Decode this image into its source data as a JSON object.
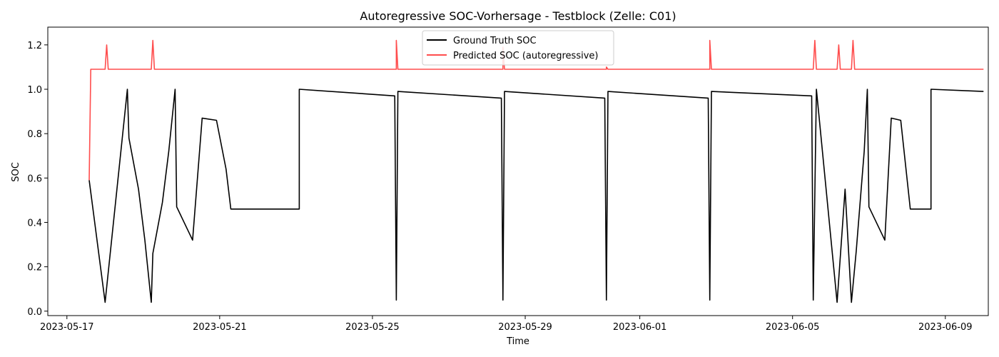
{
  "chart_data": {
    "type": "line",
    "title": "Autoregressive SOC-Vorhersage - Testblock (Zelle: C01)",
    "xlabel": "Time",
    "ylabel": "SOC",
    "x_unit": "date",
    "xlim": [
      "2023-05-16T12:00",
      "2023-06-10T03:00"
    ],
    "ylim": [
      -0.02,
      1.28
    ],
    "x_ticks": [
      "2023-05-17",
      "2023-05-21",
      "2023-05-25",
      "2023-05-29",
      "2023-06-01",
      "2023-06-05",
      "2023-06-09"
    ],
    "y_ticks": [
      0.0,
      0.2,
      0.4,
      0.6,
      0.8,
      1.0,
      1.2
    ],
    "y_tick_labels": [
      "0.0",
      "0.2",
      "0.4",
      "0.6",
      "0.8",
      "1.0",
      "1.2"
    ],
    "grid": false,
    "legend_position": "top-center",
    "series": [
      {
        "name": "Ground Truth SOC",
        "color": "#000000",
        "points": [
          [
            "2023-05-17T14:00",
            0.59
          ],
          [
            "2023-05-18T00:00",
            0.04
          ],
          [
            "2023-05-18T14:00",
            1.0
          ],
          [
            "2023-05-18T15:00",
            0.78
          ],
          [
            "2023-05-18T21:00",
            0.55
          ],
          [
            "2023-05-19T01:00",
            0.32
          ],
          [
            "2023-05-19T05:00",
            0.04
          ],
          [
            "2023-05-19T06:00",
            0.26
          ],
          [
            "2023-05-19T12:00",
            0.49
          ],
          [
            "2023-05-19T16:00",
            0.72
          ],
          [
            "2023-05-19T20:00",
            1.0
          ],
          [
            "2023-05-19T21:00",
            0.47
          ],
          [
            "2023-05-20T07:00",
            0.32
          ],
          [
            "2023-05-20T13:00",
            0.87
          ],
          [
            "2023-05-20T22:00",
            0.86
          ],
          [
            "2023-05-21T04:00",
            0.64
          ],
          [
            "2023-05-21T07:00",
            0.46
          ],
          [
            "2023-05-23T02:00",
            0.46
          ],
          [
            "2023-05-23T02:00",
            1.0
          ],
          [
            "2023-05-25T14:00",
            0.97
          ],
          [
            "2023-05-25T15:00",
            0.05
          ],
          [
            "2023-05-25T16:00",
            0.99
          ],
          [
            "2023-05-28T09:00",
            0.96
          ],
          [
            "2023-05-28T10:00",
            0.05
          ],
          [
            "2023-05-28T11:00",
            0.99
          ],
          [
            "2023-05-31T02:00",
            0.96
          ],
          [
            "2023-05-31T03:00",
            0.05
          ],
          [
            "2023-05-31T04:00",
            0.99
          ],
          [
            "2023-06-02T19:00",
            0.96
          ],
          [
            "2023-06-02T20:00",
            0.05
          ],
          [
            "2023-06-02T21:00",
            0.99
          ],
          [
            "2023-06-05T12:00",
            0.97
          ],
          [
            "2023-06-05T13:00",
            0.05
          ],
          [
            "2023-06-05T15:00",
            1.0
          ],
          [
            "2023-06-06T04:00",
            0.04
          ],
          [
            "2023-06-06T09:00",
            0.55
          ],
          [
            "2023-06-06T13:00",
            0.04
          ],
          [
            "2023-06-06T16:00",
            0.27
          ],
          [
            "2023-06-06T21:00",
            0.72
          ],
          [
            "2023-06-06T23:00",
            1.0
          ],
          [
            "2023-06-07T00:00",
            0.47
          ],
          [
            "2023-06-07T10:00",
            0.32
          ],
          [
            "2023-06-07T14:00",
            0.87
          ],
          [
            "2023-06-07T20:00",
            0.86
          ],
          [
            "2023-06-08T02:00",
            0.46
          ],
          [
            "2023-06-08T15:00",
            0.46
          ],
          [
            "2023-06-08T15:00",
            1.0
          ],
          [
            "2023-06-10T00:00",
            0.99
          ]
        ]
      },
      {
        "name": "Predicted SOC (autoregressive)",
        "color": "#ff4d4d",
        "points": [
          [
            "2023-05-17T14:00",
            0.59
          ],
          [
            "2023-05-17T15:00",
            1.09
          ],
          [
            "2023-05-18T00:00",
            1.09
          ],
          [
            "2023-05-18T01:00",
            1.2
          ],
          [
            "2023-05-18T02:00",
            1.09
          ],
          [
            "2023-05-19T05:00",
            1.09
          ],
          [
            "2023-05-19T06:00",
            1.22
          ],
          [
            "2023-05-19T07:00",
            1.09
          ],
          [
            "2023-05-23T02:00",
            1.09
          ],
          [
            "2023-05-25T15:00",
            1.09
          ],
          [
            "2023-05-25T15:00",
            1.22
          ],
          [
            "2023-05-25T16:00",
            1.09
          ],
          [
            "2023-05-28T10:00",
            1.09
          ],
          [
            "2023-05-28T10:00",
            1.19
          ],
          [
            "2023-05-28T11:00",
            1.09
          ],
          [
            "2023-05-31T03:00",
            1.09
          ],
          [
            "2023-05-31T03:00",
            1.1
          ],
          [
            "2023-05-31T04:00",
            1.09
          ],
          [
            "2023-06-02T20:00",
            1.09
          ],
          [
            "2023-06-02T20:00",
            1.22
          ],
          [
            "2023-06-02T21:00",
            1.09
          ],
          [
            "2023-06-05T13:00",
            1.09
          ],
          [
            "2023-06-05T14:00",
            1.22
          ],
          [
            "2023-06-05T15:00",
            1.09
          ],
          [
            "2023-06-06T04:00",
            1.09
          ],
          [
            "2023-06-06T05:00",
            1.2
          ],
          [
            "2023-06-06T06:00",
            1.09
          ],
          [
            "2023-06-06T13:00",
            1.09
          ],
          [
            "2023-06-06T14:00",
            1.22
          ],
          [
            "2023-06-06T15:00",
            1.09
          ],
          [
            "2023-06-10T00:00",
            1.09
          ]
        ]
      }
    ]
  }
}
